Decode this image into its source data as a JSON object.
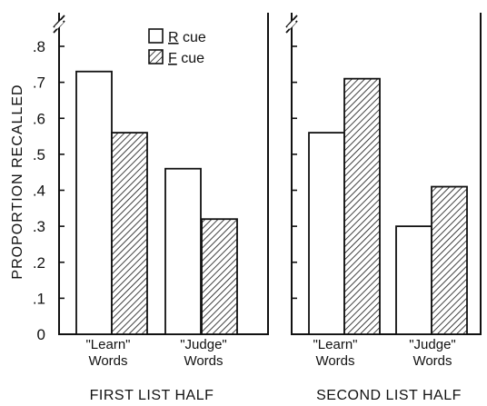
{
  "chart_data": {
    "type": "bar",
    "ylabel": "PROPORTION RECALLED",
    "ylim": [
      0,
      0.85
    ],
    "yticks": [
      {
        "value": 0,
        "label": "0"
      },
      {
        "value": 0.1,
        "label": ".1"
      },
      {
        "value": 0.2,
        "label": ".2"
      },
      {
        "value": 0.3,
        "label": ".3"
      },
      {
        "value": 0.4,
        "label": ".4"
      },
      {
        "value": 0.5,
        "label": ".5"
      },
      {
        "value": 0.6,
        "label": ".6"
      },
      {
        "value": 0.7,
        "label": ".7"
      },
      {
        "value": 0.8,
        "label": ".8"
      }
    ],
    "legend": {
      "placement": "top-right of left panel",
      "entries": [
        {
          "underlined": "R",
          "rest": " cue",
          "pattern": "open"
        },
        {
          "underlined": "F",
          "rest": " cue",
          "pattern": "hatched"
        }
      ]
    },
    "series_patterns": {
      "R cue": "open",
      "F cue": "hatched"
    },
    "panels": [
      {
        "label": "FIRST LIST HALF",
        "groups": [
          {
            "line1": "\"Learn\"",
            "line2": "Words",
            "values": {
              "R cue": 0.73,
              "F cue": 0.56
            }
          },
          {
            "line1": "\"Judge\"",
            "line2": "Words",
            "values": {
              "R cue": 0.46,
              "F cue": 0.32
            }
          }
        ]
      },
      {
        "label": "SECOND LIST HALF",
        "groups": [
          {
            "line1": "\"Learn\"",
            "line2": "Words",
            "values": {
              "R cue": 0.56,
              "F cue": 0.71
            }
          },
          {
            "line1": "\"Judge\"",
            "line2": "Words",
            "values": {
              "R cue": 0.3,
              "F cue": 0.41
            }
          }
        ]
      }
    ]
  }
}
